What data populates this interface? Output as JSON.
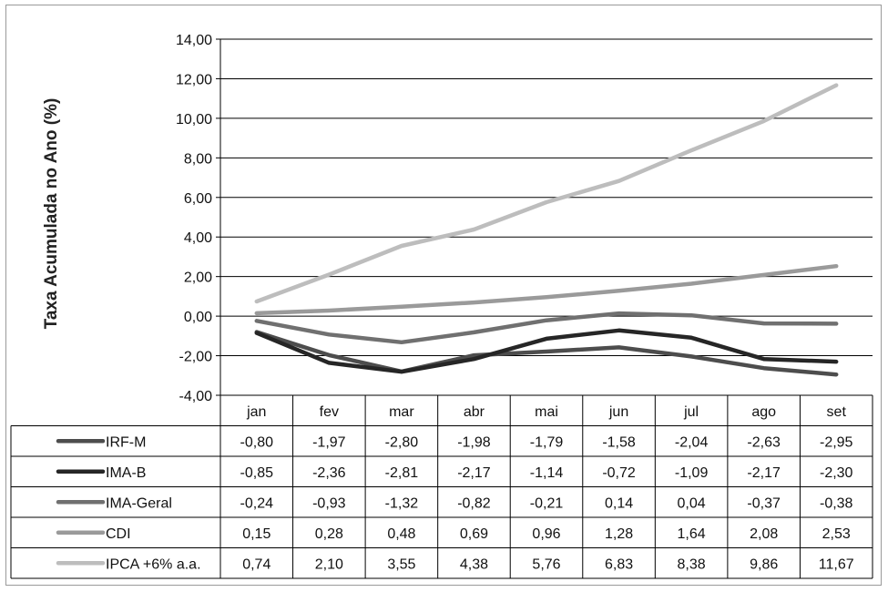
{
  "chart_data": {
    "type": "line",
    "ylabel": "Taxa Acumulada no Ano (%)",
    "ylim": [
      -4,
      14
    ],
    "yticks": [
      -4,
      -2,
      0,
      2,
      4,
      6,
      8,
      10,
      12,
      14
    ],
    "ytick_labels": [
      "-4,00",
      "-2,00",
      "0,00",
      "2,00",
      "4,00",
      "6,00",
      "8,00",
      "10,00",
      "12,00",
      "14,00"
    ],
    "grid": true,
    "legend": "data-table-below",
    "categories": [
      "jan",
      "fev",
      "mar",
      "abr",
      "mai",
      "jun",
      "jul",
      "ago",
      "set"
    ],
    "series": [
      {
        "name": "IRF-M",
        "color": "#4d4d4d",
        "values": [
          -0.8,
          -1.97,
          -2.8,
          -1.98,
          -1.79,
          -1.58,
          -2.04,
          -2.63,
          -2.95
        ],
        "labels": [
          "-0,80",
          "-1,97",
          "-2,80",
          "-1,98",
          "-1,79",
          "-1,58",
          "-2,04",
          "-2,63",
          "-2,95"
        ]
      },
      {
        "name": "IMA-B",
        "color": "#262626",
        "values": [
          -0.85,
          -2.36,
          -2.81,
          -2.17,
          -1.14,
          -0.72,
          -1.09,
          -2.17,
          -2.3
        ],
        "labels": [
          "-0,85",
          "-2,36",
          "-2,81",
          "-2,17",
          "-1,14",
          "-0,72",
          "-1,09",
          "-2,17",
          "-2,30"
        ]
      },
      {
        "name": "IMA-Geral",
        "color": "#707070",
        "values": [
          -0.24,
          -0.93,
          -1.32,
          -0.82,
          -0.21,
          0.14,
          0.04,
          -0.37,
          -0.38
        ],
        "labels": [
          "-0,24",
          "-0,93",
          "-1,32",
          "-0,82",
          "-0,21",
          "0,14",
          "0,04",
          "-0,37",
          "-0,38"
        ]
      },
      {
        "name": "CDI",
        "color": "#9a9a9a",
        "values": [
          0.15,
          0.28,
          0.48,
          0.69,
          0.96,
          1.28,
          1.64,
          2.08,
          2.53
        ],
        "labels": [
          "0,15",
          "0,28",
          "0,48",
          "0,69",
          "0,96",
          "1,28",
          "1,64",
          "2,08",
          "2,53"
        ]
      },
      {
        "name": "IPCA +6% a.a.",
        "color": "#bdbdbd",
        "values": [
          0.74,
          2.1,
          3.55,
          4.38,
          5.76,
          6.83,
          8.38,
          9.86,
          11.67
        ],
        "labels": [
          "0,74",
          "2,10",
          "3,55",
          "4,38",
          "5,76",
          "6,83",
          "8,38",
          "9,86",
          "11,67"
        ]
      }
    ]
  }
}
